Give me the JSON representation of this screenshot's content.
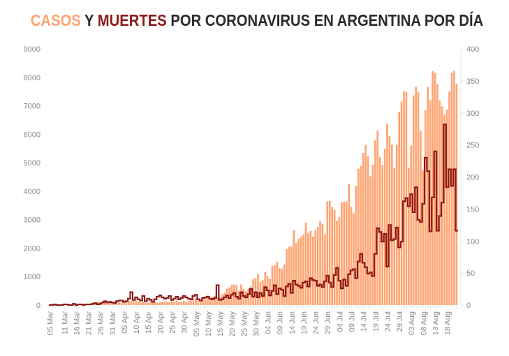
{
  "title": {
    "part1": "CASOS",
    "part2": " Y ",
    "part3": "MUERTES",
    "part4": " POR CORONAVIRUS EN ARGENTINA POR DÍA"
  },
  "colors": {
    "cases": "#ffa472",
    "deaths": "#8b1a1a",
    "title_dark": "#2b2b2b",
    "tick": "#8a8a8a",
    "axis": "#e6e6e6"
  },
  "chart_data": {
    "type": "bar",
    "title": "CASOS Y MUERTES POR CORONAVIRUS EN ARGENTINA POR DÍA",
    "xlabel": "",
    "ylabel_left": "",
    "ylabel_right": "",
    "ylim_left": [
      0,
      9000
    ],
    "ylim_right": [
      0,
      400
    ],
    "yticks_left": [
      "0",
      "1000",
      "2000",
      "3000",
      "4000",
      "5000",
      "6000",
      "7000",
      "8000",
      "9000"
    ],
    "yticks_right": [
      "0",
      "50",
      "100",
      "150",
      "200",
      "250",
      "300",
      "350",
      "400"
    ],
    "start_date": "05 Mar",
    "xtick_labels": [
      "05 Mar",
      "11 Mar",
      "16 Mar",
      "21 Mar",
      "26 Mar",
      "31 Mar",
      "05 Apr",
      "10 Apr",
      "15 Apr",
      "20 Apr",
      "25 Apr",
      "30 Apr",
      "05 May",
      "10 May",
      "15 May",
      "20 May",
      "25 May",
      "30 May",
      "04 Jun",
      "09 Jun",
      "14 Jun",
      "19 Jun",
      "24 Jun",
      "29 Jun",
      "04 Jul",
      "09 Jul",
      "14 Jul",
      "19 Jul",
      "24 Jul",
      "29 Jul",
      "03 Aug",
      "08 Aug",
      "13 Aug",
      "18 Aug"
    ],
    "xtick_day_index": [
      0,
      6,
      11,
      16,
      21,
      26,
      31,
      36,
      41,
      46,
      51,
      56,
      61,
      66,
      71,
      76,
      81,
      86,
      91,
      96,
      101,
      106,
      111,
      116,
      121,
      126,
      131,
      136,
      141,
      146,
      151,
      156,
      161,
      166
    ],
    "series": [
      {
        "name": "Casos",
        "type": "bar",
        "axis": "left",
        "values": [
          1,
          0,
          2,
          2,
          4,
          3,
          2,
          10,
          5,
          9,
          12,
          10,
          20,
          14,
          31,
          31,
          34,
          57,
          86,
          55,
          97,
          101,
          67,
          129,
          87,
          101,
          90,
          55,
          146,
          104,
          88,
          103,
          98,
          112,
          139,
          167,
          158,
          115,
          95,
          124,
          85,
          78,
          111,
          144,
          98,
          80,
          96,
          114,
          130,
          111,
          118,
          174,
          123,
          143,
          104,
          124,
          153,
          127,
          144,
          163,
          211,
          243,
          147,
          170,
          193,
          240,
          337,
          241,
          296,
          327,
          270,
          274,
          376,
          436,
          573,
          617,
          713,
          728,
          707,
          506,
          723,
          562,
          495,
          580,
          660,
          904,
          949,
          1096,
          816,
          872,
          1152,
          1026,
          918,
          1371,
          1397,
          1524,
          1302,
          1280,
          1426,
          1963,
          2041,
          2054,
          2635,
          2177,
          2329,
          2404,
          2479,
          2892,
          2536,
          2606,
          2399,
          2636,
          2744,
          2957,
          2846,
          2486,
          3645,
          3663,
          3449,
          3338,
          2964,
          3099,
          3604,
          3624,
          3645,
          4250,
          3449,
          3223,
          4190,
          4783,
          4890,
          5344,
          5621,
          5225,
          4523,
          4933,
          5782,
          6134,
          5198,
          4924,
          5493,
          6377,
          5929,
          5641,
          4824,
          5629,
          6792,
          7147,
          7513,
          7482,
          4824,
          5599,
          7369,
          7663,
          7498,
          6134,
          4730,
          6840,
          7663,
          7200,
          8225,
          8159,
          7768,
          7187,
          6976,
          6693,
          6865,
          7498,
          8159,
          8225,
          7768
        ],
        "note": "daily new cases, read approximately from bar heights"
      },
      {
        "name": "Muertes",
        "type": "step-line",
        "axis": "right",
        "values": [
          0,
          0,
          1,
          0,
          0,
          0,
          1,
          1,
          0,
          0,
          2,
          0,
          1,
          1,
          0,
          1,
          1,
          1,
          2,
          3,
          1,
          2,
          4,
          6,
          4,
          5,
          4,
          3,
          6,
          7,
          7,
          5,
          6,
          10,
          20,
          8,
          12,
          9,
          7,
          14,
          6,
          10,
          8,
          5,
          9,
          13,
          15,
          12,
          10,
          11,
          14,
          8,
          10,
          13,
          9,
          11,
          14,
          12,
          10,
          9,
          14,
          16,
          9,
          7,
          11,
          12,
          13,
          10,
          9,
          11,
          31,
          8,
          9,
          12,
          15,
          11,
          16,
          19,
          13,
          10,
          20,
          14,
          12,
          17,
          25,
          13,
          20,
          12,
          19,
          14,
          28,
          23,
          15,
          22,
          31,
          17,
          26,
          24,
          14,
          29,
          33,
          19,
          38,
          32,
          30,
          27,
          35,
          37,
          29,
          42,
          39,
          38,
          30,
          32,
          28,
          37,
          46,
          35,
          28,
          47,
          58,
          38,
          26,
          40,
          30,
          48,
          54,
          56,
          42,
          68,
          80,
          66,
          59,
          49,
          51,
          45,
          80,
          120,
          114,
          99,
          111,
          60,
          125,
          101,
          103,
          121,
          90,
          99,
          162,
          167,
          154,
          173,
          145,
          184,
          133,
          130,
          158,
          230,
          209,
          115,
          168,
          240,
          116,
          139,
          160,
          282,
          184,
          212,
          186,
          212,
          116
        ]
      }
    ],
    "legend": "none",
    "grid": false
  }
}
